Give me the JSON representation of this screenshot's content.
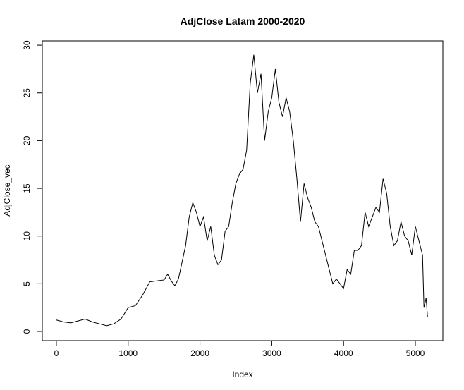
{
  "chart_data": {
    "type": "line",
    "title": "AdjClose Latam 2000-2020",
    "x_label": "Index",
    "y_label": "AdjClose_vec",
    "x": [
      0,
      100,
      200,
      300,
      400,
      500,
      600,
      700,
      800,
      900,
      1000,
      1100,
      1200,
      1300,
      1400,
      1500,
      1550,
      1600,
      1650,
      1700,
      1800,
      1850,
      1900,
      1950,
      2000,
      2050,
      2100,
      2150,
      2200,
      2250,
      2300,
      2350,
      2400,
      2450,
      2500,
      2550,
      2600,
      2650,
      2700,
      2750,
      2800,
      2850,
      2900,
      2950,
      3000,
      3050,
      3100,
      3150,
      3200,
      3250,
      3300,
      3350,
      3400,
      3450,
      3500,
      3550,
      3600,
      3650,
      3700,
      3750,
      3800,
      3850,
      3900,
      3950,
      4000,
      4050,
      4100,
      4150,
      4200,
      4250,
      4300,
      4350,
      4400,
      4450,
      4500,
      4550,
      4600,
      4650,
      4700,
      4750,
      4800,
      4850,
      4900,
      4950,
      5000,
      5050,
      5100,
      5120,
      5150,
      5170
    ],
    "series": [
      {
        "name": "AdjClose_vec",
        "color": "#000000",
        "values": [
          1.2,
          1.0,
          0.9,
          1.1,
          1.3,
          1.0,
          0.8,
          0.6,
          0.8,
          1.3,
          2.5,
          2.7,
          3.8,
          5.2,
          5.3,
          5.4,
          6.0,
          5.3,
          4.8,
          5.5,
          9.0,
          12.0,
          13.5,
          12.5,
          11.0,
          12.0,
          9.5,
          11.0,
          8.0,
          7.0,
          7.5,
          10.5,
          11.0,
          13.5,
          15.5,
          16.5,
          17.0,
          19.0,
          26.0,
          29.0,
          25.0,
          27.0,
          20.0,
          23.0,
          24.5,
          27.5,
          24.0,
          22.5,
          24.5,
          23.0,
          20.0,
          16.0,
          11.5,
          15.5,
          14.0,
          13.0,
          11.5,
          11.0,
          9.5,
          8.0,
          6.5,
          5.0,
          5.5,
          5.0,
          4.5,
          6.5,
          6.0,
          8.5,
          8.5,
          9.0,
          12.5,
          11.0,
          12.0,
          13.0,
          12.5,
          16.0,
          14.5,
          11.0,
          9.0,
          9.5,
          11.5,
          10.0,
          9.5,
          8.0,
          11.0,
          9.5,
          8.0,
          2.5,
          3.5,
          1.5
        ]
      }
    ],
    "xlim": [
      -196,
      5383
    ],
    "ylim": [
      -0.96,
      30.45
    ],
    "xticks": [
      0,
      1000,
      2000,
      3000,
      4000,
      5000
    ],
    "yticks": [
      0,
      5,
      10,
      15,
      20,
      25,
      30
    ]
  }
}
